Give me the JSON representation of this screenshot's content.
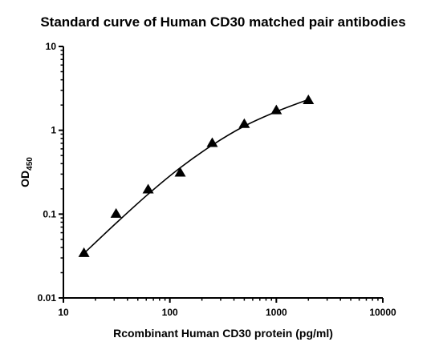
{
  "chart_data": {
    "type": "scatter",
    "title": "Standard curve of Human CD30 matched pair antibodies",
    "xlabel": "Rcombinant Human CD30 protein (pg/ml)",
    "ylabel_main": "OD",
    "ylabel_sub": "450",
    "x_scale": "log",
    "y_scale": "log",
    "xlim": [
      10,
      10000
    ],
    "ylim": [
      0.01,
      10
    ],
    "x_ticks": [
      {
        "value": 10,
        "label": "10"
      },
      {
        "value": 100,
        "label": "100"
      },
      {
        "value": 1000,
        "label": "1000"
      },
      {
        "value": 10000,
        "label": "10000"
      }
    ],
    "y_ticks": [
      {
        "value": 0.01,
        "label": "0.01"
      },
      {
        "value": 0.1,
        "label": "0.1"
      },
      {
        "value": 1,
        "label": "1"
      },
      {
        "value": 10,
        "label": "10"
      }
    ],
    "grid": false,
    "marker": "triangle",
    "series": [
      {
        "x": [
          15.6,
          31.25,
          62.5,
          125,
          250,
          500,
          1000,
          2000
        ],
        "y": [
          0.034,
          0.1,
          0.195,
          0.31,
          0.7,
          1.18,
          1.72,
          2.27
        ]
      }
    ],
    "fit_curve": {
      "x": [
        15.6,
        31.25,
        62.5,
        125,
        250,
        500,
        1000,
        2000
      ],
      "y": [
        0.034,
        0.078,
        0.173,
        0.357,
        0.665,
        1.12,
        1.67,
        2.33
      ]
    },
    "colors": {
      "marks": "#000000",
      "axis": "#000000",
      "background": "#ffffff"
    }
  }
}
